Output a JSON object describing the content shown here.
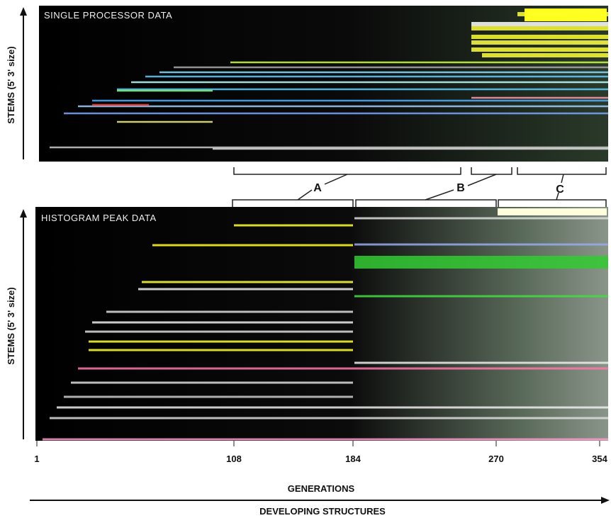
{
  "panels": [
    {
      "title": "SINGLE PROCESSOR DATA",
      "y_label": "STEMS (5' 3' size)"
    },
    {
      "title": "HISTOGRAM PEAK DATA",
      "y_label": "STEMS (5' 3' size)"
    }
  ],
  "brackets": [
    "A",
    "B",
    "C"
  ],
  "x_ticks": [
    "1",
    "108",
    "184",
    "270",
    "354"
  ],
  "x_label": "GENERATIONS",
  "bottom_label": "DEVELOPING STRUCTURES"
}
